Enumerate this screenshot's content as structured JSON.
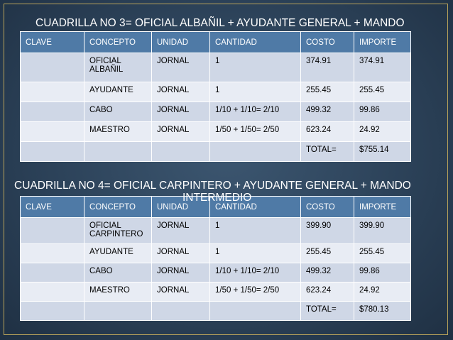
{
  "section1": {
    "title": "CUADRILLA NO 3= OFICIAL ALBAÑIL + AYUDANTE GENERAL + MANDO",
    "headers": [
      "CLAVE",
      "CONCEPTO",
      "UNIDAD",
      "CANTIDAD",
      "COSTO",
      "IMPORTE"
    ],
    "rows": [
      [
        "",
        "OFICIAL ALBAÑIL",
        "JORNAL",
        "1",
        "374.91",
        "374.91"
      ],
      [
        "",
        "AYUDANTE",
        "JORNAL",
        "1",
        "255.45",
        "255.45"
      ],
      [
        "",
        "CABO",
        "JORNAL",
        "1/10 + 1/10= 2/10",
        "499.32",
        "99.86"
      ],
      [
        "",
        "MAESTRO",
        "JORNAL",
        "1/50 + 1/50= 2/50",
        "623.24",
        "24.92"
      ],
      [
        "",
        "",
        "",
        "",
        "TOTAL=",
        "$755.14"
      ]
    ]
  },
  "section2": {
    "title_line1": "CUADRILLA NO 4= OFICIAL CARPINTERO + AYUDANTE GENERAL + MANDO",
    "title_line2": "INTERMEDIO",
    "headers": [
      "CLAVE",
      "CONCEPTO",
      "UNIDAD",
      "CANTIDAD",
      "COSTO",
      "IMPORTE"
    ],
    "rows": [
      [
        "",
        "OFICIAL CARPINTERO",
        "JORNAL",
        "1",
        "399.90",
        "399.90"
      ],
      [
        "",
        "AYUDANTE",
        "JORNAL",
        "1",
        "255.45",
        "255.45"
      ],
      [
        "",
        "CABO",
        "JORNAL",
        "1/10 + 1/10= 2/10",
        "499.32",
        "99.86"
      ],
      [
        "",
        "MAESTRO",
        "JORNAL",
        "1/50 + 1/50= 2/50",
        "623.24",
        "24.92"
      ],
      [
        "",
        "",
        "",
        "",
        "TOTAL=",
        "$780.13"
      ]
    ]
  }
}
